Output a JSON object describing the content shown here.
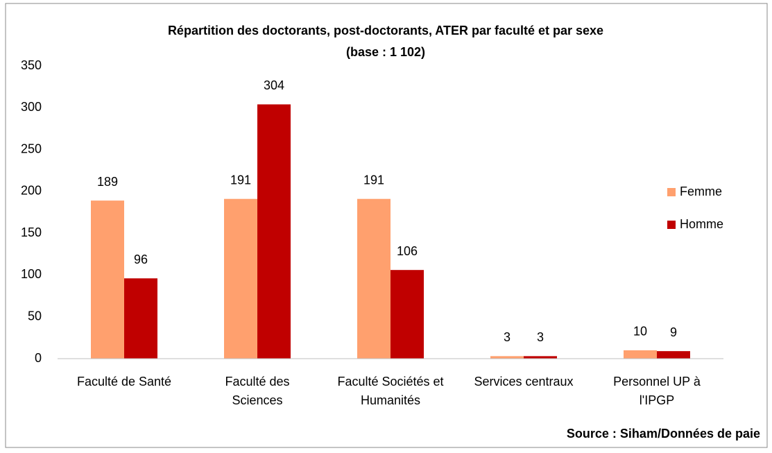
{
  "chart_data": {
    "type": "bar",
    "title": "Répartition des doctorants, post-doctorants, ATER par faculté et par sexe",
    "subtitle": "(base : 1 102)",
    "categories": [
      [
        "Faculté de Santé"
      ],
      [
        "Faculté des",
        "Sciences"
      ],
      [
        "Faculté Sociétés et",
        "Humanités"
      ],
      [
        "Services centraux"
      ],
      [
        "Personnel UP à",
        "l'IPGP"
      ]
    ],
    "series": [
      {
        "name": "Femme",
        "color": "#ffa06e",
        "values": [
          189,
          191,
          191,
          3,
          10
        ]
      },
      {
        "name": "Homme",
        "color": "#c00000",
        "values": [
          96,
          304,
          106,
          3,
          9
        ]
      }
    ],
    "ylim": [
      0,
      350
    ],
    "yticks": [
      0,
      50,
      100,
      150,
      200,
      250,
      300,
      350
    ],
    "grid": false,
    "legend": "right",
    "annotation": "Source : Siham/Données de paie"
  }
}
